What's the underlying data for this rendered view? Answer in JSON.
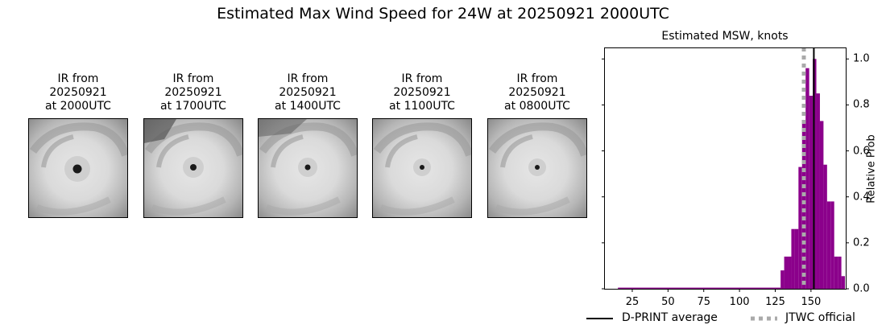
{
  "title": "Estimated Max Wind Speed for 24W at 20250921 2000UTC",
  "panels": [
    {
      "line1": "IR from",
      "line2": "20250921",
      "line3": "at 2000UTC",
      "eye_size": 11
    },
    {
      "line1": "IR from",
      "line2": "20250921",
      "line3": "at 1700UTC",
      "eye_size": 8
    },
    {
      "line1": "IR from",
      "line2": "20250921",
      "line3": "at 1400UTC",
      "eye_size": 7
    },
    {
      "line1": "IR from",
      "line2": "20250921",
      "line3": "at 1100UTC",
      "eye_size": 6
    },
    {
      "line1": "IR from",
      "line2": "20250921",
      "line3": "at 0800UTC",
      "eye_size": 6
    }
  ],
  "chart_data": {
    "type": "bar",
    "title": "Estimated MSW, knots",
    "xlabel": "",
    "ylabel": "Relative Prob",
    "xlim": [
      5.3,
      174.3
    ],
    "ylim": [
      0.0,
      1.05
    ],
    "xticks": [
      25,
      50,
      75,
      100,
      125,
      150
    ],
    "yticks": [
      0.0,
      0.2,
      0.4,
      0.6,
      0.8,
      1.0
    ],
    "ytick_labels": [
      "0.0",
      "0.2",
      "0.4",
      "0.6",
      "0.8",
      "1.0"
    ],
    "bar_color": "#8b008b",
    "bins": [
      {
        "x0": 15.0,
        "x1": 128.75,
        "value": 0.005
      },
      {
        "x0": 128.75,
        "x1": 131.25,
        "value": 0.08
      },
      {
        "x0": 131.25,
        "x1": 133.75,
        "value": 0.14
      },
      {
        "x0": 133.75,
        "x1": 136.25,
        "value": 0.14
      },
      {
        "x0": 136.25,
        "x1": 138.75,
        "value": 0.26
      },
      {
        "x0": 138.75,
        "x1": 141.25,
        "value": 0.26
      },
      {
        "x0": 141.25,
        "x1": 143.75,
        "value": 0.53
      },
      {
        "x0": 143.75,
        "x1": 146.25,
        "value": 0.72
      },
      {
        "x0": 146.25,
        "x1": 148.75,
        "value": 0.96
      },
      {
        "x0": 148.75,
        "x1": 151.25,
        "value": 0.84
      },
      {
        "x0": 151.25,
        "x1": 153.75,
        "value": 1.0
      },
      {
        "x0": 153.75,
        "x1": 156.25,
        "value": 0.85
      },
      {
        "x0": 156.25,
        "x1": 158.75,
        "value": 0.73
      },
      {
        "x0": 158.75,
        "x1": 161.25,
        "value": 0.54
      },
      {
        "x0": 161.25,
        "x1": 163.75,
        "value": 0.38
      },
      {
        "x0": 163.75,
        "x1": 166.25,
        "value": 0.38
      },
      {
        "x0": 166.25,
        "x1": 168.75,
        "value": 0.14
      },
      {
        "x0": 168.75,
        "x1": 171.25,
        "value": 0.14
      },
      {
        "x0": 171.25,
        "x1": 173.75,
        "value": 0.055
      }
    ],
    "vlines": [
      {
        "name": "D-PRINT average",
        "x": 152,
        "color": "#000000",
        "style": "solid"
      },
      {
        "name": "JTWC official",
        "x": 145,
        "color": "#aaaaaa",
        "style": "dotted"
      }
    ],
    "legend": [
      "D-PRINT average",
      "JTWC official"
    ],
    "legend_position": "bottom"
  }
}
